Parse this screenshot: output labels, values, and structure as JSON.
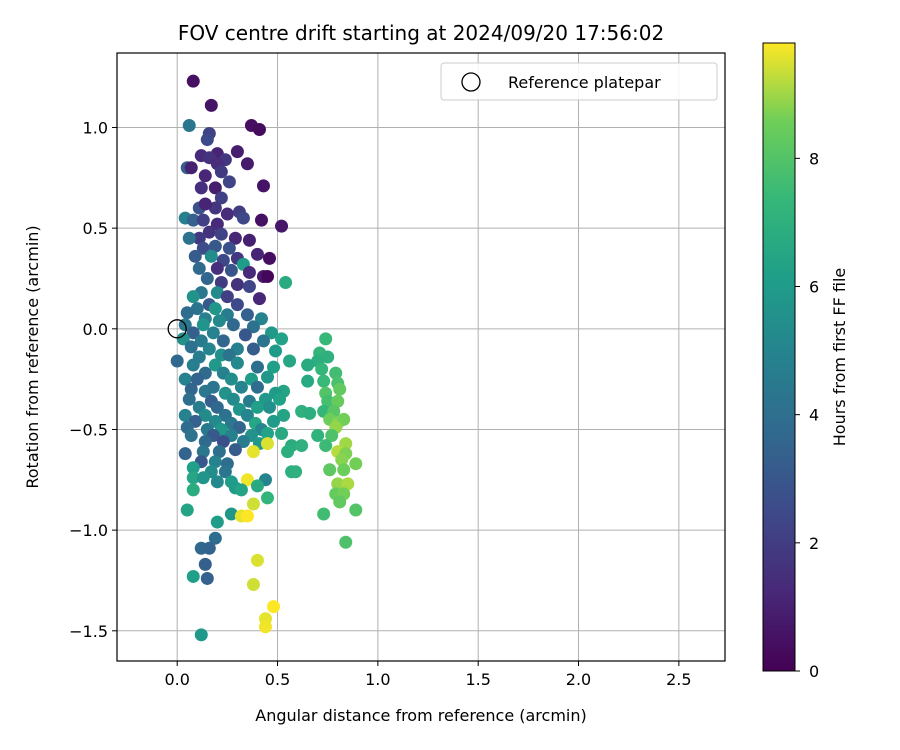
{
  "chart_data": {
    "type": "scatter",
    "title": "FOV centre drift starting at 2024/09/20 17:56:02",
    "xlabel": "Angular distance from reference (arcmin)",
    "ylabel": "Rotation from reference (arcmin)",
    "xlim": [
      -0.3,
      2.73
    ],
    "ylim": [
      -1.65,
      1.37
    ],
    "xticks": [
      0.0,
      0.5,
      1.0,
      1.5,
      2.0,
      2.5
    ],
    "xtick_labels": [
      "0.0",
      "0.5",
      "1.0",
      "1.5",
      "2.0",
      "2.5"
    ],
    "yticks": [
      1.0,
      0.5,
      0.0,
      -0.5,
      -1.0,
      -1.5
    ],
    "ytick_labels": [
      "1.0",
      "0.5",
      "0.0",
      "−0.5",
      "−1.0",
      "−1.5"
    ],
    "grid": true,
    "legend": {
      "position": "top-right",
      "entries": [
        "Reference platepar"
      ]
    },
    "reference_point": {
      "x": 0.0,
      "y": 0.0,
      "label": "Reference platepar"
    },
    "colorbar": {
      "label": "Hours from first FF file",
      "colormap": "viridis",
      "range": [
        0,
        9.8
      ],
      "ticks": [
        0,
        2,
        4,
        6,
        8
      ],
      "tick_labels": [
        "0",
        "2",
        "4",
        "6",
        "8"
      ]
    },
    "points": [
      {
        "x": 0.08,
        "y": 1.23,
        "t": 0.5
      },
      {
        "x": 0.17,
        "y": 1.11,
        "t": 0.6
      },
      {
        "x": 0.37,
        "y": 1.01,
        "t": 0.4
      },
      {
        "x": 0.41,
        "y": 0.99,
        "t": 0.3
      },
      {
        "x": 0.06,
        "y": 1.01,
        "t": 4.3
      },
      {
        "x": 0.16,
        "y": 0.97,
        "t": 2.2
      },
      {
        "x": 0.15,
        "y": 0.94,
        "t": 2.5
      },
      {
        "x": 0.2,
        "y": 0.87,
        "t": 1.1
      },
      {
        "x": 0.12,
        "y": 0.86,
        "t": 1.3
      },
      {
        "x": 0.16,
        "y": 0.85,
        "t": 1.6
      },
      {
        "x": 0.24,
        "y": 0.84,
        "t": 1.8
      },
      {
        "x": 0.3,
        "y": 0.88,
        "t": 0.9
      },
      {
        "x": 0.05,
        "y": 0.8,
        "t": 3.3
      },
      {
        "x": 0.07,
        "y": 0.8,
        "t": 1.0
      },
      {
        "x": 0.2,
        "y": 0.82,
        "t": 1.4
      },
      {
        "x": 0.35,
        "y": 0.82,
        "t": 0.8
      },
      {
        "x": 0.14,
        "y": 0.76,
        "t": 1.2
      },
      {
        "x": 0.22,
        "y": 0.78,
        "t": 1.9
      },
      {
        "x": 0.26,
        "y": 0.73,
        "t": 2.3
      },
      {
        "x": 0.12,
        "y": 0.7,
        "t": 1.5
      },
      {
        "x": 0.19,
        "y": 0.7,
        "t": 0.9
      },
      {
        "x": 0.43,
        "y": 0.71,
        "t": 0.6
      },
      {
        "x": 0.22,
        "y": 0.65,
        "t": 2.1
      },
      {
        "x": 0.19,
        "y": 0.6,
        "t": 1.7
      },
      {
        "x": 0.11,
        "y": 0.6,
        "t": 2.8
      },
      {
        "x": 0.14,
        "y": 0.62,
        "t": 1.1
      },
      {
        "x": 0.25,
        "y": 0.57,
        "t": 1.4
      },
      {
        "x": 0.31,
        "y": 0.58,
        "t": 2.0
      },
      {
        "x": 0.04,
        "y": 0.55,
        "t": 4.8
      },
      {
        "x": 0.08,
        "y": 0.54,
        "t": 3.4
      },
      {
        "x": 0.13,
        "y": 0.54,
        "t": 2.1
      },
      {
        "x": 0.2,
        "y": 0.52,
        "t": 1.3
      },
      {
        "x": 0.42,
        "y": 0.54,
        "t": 0.5
      },
      {
        "x": 0.52,
        "y": 0.51,
        "t": 0.7
      },
      {
        "x": 0.33,
        "y": 0.55,
        "t": 2.4
      },
      {
        "x": 0.16,
        "y": 0.48,
        "t": 1.6
      },
      {
        "x": 0.22,
        "y": 0.47,
        "t": 2.2
      },
      {
        "x": 0.11,
        "y": 0.45,
        "t": 1.9
      },
      {
        "x": 0.06,
        "y": 0.45,
        "t": 4.1
      },
      {
        "x": 0.29,
        "y": 0.45,
        "t": 1.2
      },
      {
        "x": 0.36,
        "y": 0.44,
        "t": 1.0
      },
      {
        "x": 0.13,
        "y": 0.4,
        "t": 2.6
      },
      {
        "x": 0.19,
        "y": 0.41,
        "t": 3.0
      },
      {
        "x": 0.26,
        "y": 0.4,
        "t": 2.8
      },
      {
        "x": 0.4,
        "y": 0.37,
        "t": 1.1
      },
      {
        "x": 0.46,
        "y": 0.35,
        "t": 0.4
      },
      {
        "x": 0.09,
        "y": 0.36,
        "t": 3.2
      },
      {
        "x": 0.17,
        "y": 0.36,
        "t": 5.4
      },
      {
        "x": 0.23,
        "y": 0.34,
        "t": 2.4
      },
      {
        "x": 0.3,
        "y": 0.35,
        "t": 1.8
      },
      {
        "x": 0.33,
        "y": 0.32,
        "t": 6.1
      },
      {
        "x": 0.11,
        "y": 0.3,
        "t": 3.8
      },
      {
        "x": 0.2,
        "y": 0.3,
        "t": 1.5
      },
      {
        "x": 0.27,
        "y": 0.29,
        "t": 2.9
      },
      {
        "x": 0.36,
        "y": 0.28,
        "t": 1.3
      },
      {
        "x": 0.43,
        "y": 0.26,
        "t": 0.8
      },
      {
        "x": 0.45,
        "y": 0.26,
        "t": 0.2
      },
      {
        "x": 0.54,
        "y": 0.23,
        "t": 6.7
      },
      {
        "x": 0.15,
        "y": 0.25,
        "t": 3.6
      },
      {
        "x": 0.22,
        "y": 0.23,
        "t": 2.0
      },
      {
        "x": 0.3,
        "y": 0.22,
        "t": 1.6
      },
      {
        "x": 0.36,
        "y": 0.21,
        "t": 2.3
      },
      {
        "x": 0.12,
        "y": 0.18,
        "t": 4.4
      },
      {
        "x": 0.2,
        "y": 0.18,
        "t": 5.3
      },
      {
        "x": 0.08,
        "y": 0.16,
        "t": 5.6
      },
      {
        "x": 0.25,
        "y": 0.16,
        "t": 2.1
      },
      {
        "x": 0.41,
        "y": 0.15,
        "t": 1.2
      },
      {
        "x": 0.16,
        "y": 0.12,
        "t": 3.1
      },
      {
        "x": 0.3,
        "y": 0.12,
        "t": 2.5
      },
      {
        "x": 0.1,
        "y": 0.1,
        "t": 4.2
      },
      {
        "x": 0.19,
        "y": 0.1,
        "t": 5.8
      },
      {
        "x": 0.05,
        "y": 0.08,
        "t": 3.9
      },
      {
        "x": 0.25,
        "y": 0.07,
        "t": 4.6
      },
      {
        "x": 0.35,
        "y": 0.07,
        "t": 3.4
      },
      {
        "x": 0.14,
        "y": 0.05,
        "t": 4.8
      },
      {
        "x": 0.21,
        "y": 0.04,
        "t": 5.2
      },
      {
        "x": 0.42,
        "y": 0.05,
        "t": 5.0
      },
      {
        "x": 0.04,
        "y": 0.02,
        "t": 4.4
      },
      {
        "x": 0.13,
        "y": 0.02,
        "t": 5.7
      },
      {
        "x": 0.28,
        "y": 0.02,
        "t": 3.7
      },
      {
        "x": 0.38,
        "y": 0.01,
        "t": 4.1
      },
      {
        "x": 0.08,
        "y": -0.02,
        "t": 3.3
      },
      {
        "x": 0.18,
        "y": -0.02,
        "t": 4.9
      },
      {
        "x": 0.34,
        "y": -0.03,
        "t": 3.0
      },
      {
        "x": 0.47,
        "y": -0.02,
        "t": 5.9
      },
      {
        "x": 0.03,
        "y": -0.05,
        "t": 5.5
      },
      {
        "x": 0.12,
        "y": -0.06,
        "t": 4.5
      },
      {
        "x": 0.23,
        "y": -0.06,
        "t": 3.6
      },
      {
        "x": 0.43,
        "y": -0.06,
        "t": 4.3
      },
      {
        "x": 0.52,
        "y": -0.05,
        "t": 6.3
      },
      {
        "x": 0.74,
        "y": -0.05,
        "t": 7.4
      },
      {
        "x": 0.07,
        "y": -0.09,
        "t": 4.1
      },
      {
        "x": 0.16,
        "y": -0.1,
        "t": 5.0
      },
      {
        "x": 0.3,
        "y": -0.1,
        "t": 4.8
      },
      {
        "x": 0.38,
        "y": -0.1,
        "t": 3.2
      },
      {
        "x": 0.49,
        "y": -0.11,
        "t": 6.0
      },
      {
        "x": 0.71,
        "y": -0.12,
        "t": 7.2
      },
      {
        "x": 0.75,
        "y": -0.14,
        "t": 7.0
      },
      {
        "x": 0.0,
        "y": -0.16,
        "t": 3.7
      },
      {
        "x": 0.11,
        "y": -0.14,
        "t": 4.6
      },
      {
        "x": 0.22,
        "y": -0.13,
        "t": 5.5
      },
      {
        "x": 0.26,
        "y": -0.13,
        "t": 4.2
      },
      {
        "x": 0.56,
        "y": -0.16,
        "t": 6.5
      },
      {
        "x": 0.7,
        "y": -0.16,
        "t": 6.9
      },
      {
        "x": 0.08,
        "y": -0.18,
        "t": 4.7
      },
      {
        "x": 0.19,
        "y": -0.18,
        "t": 5.9
      },
      {
        "x": 0.3,
        "y": -0.17,
        "t": 5.2
      },
      {
        "x": 0.4,
        "y": -0.19,
        "t": 4.0
      },
      {
        "x": 0.48,
        "y": -0.19,
        "t": 6.2
      },
      {
        "x": 0.72,
        "y": -0.2,
        "t": 7.3
      },
      {
        "x": 0.14,
        "y": -0.22,
        "t": 3.8
      },
      {
        "x": 0.23,
        "y": -0.22,
        "t": 4.8
      },
      {
        "x": 0.65,
        "y": -0.18,
        "t": 6.7
      },
      {
        "x": 0.79,
        "y": -0.22,
        "t": 7.6
      },
      {
        "x": 0.04,
        "y": -0.25,
        "t": 4.9
      },
      {
        "x": 0.1,
        "y": -0.25,
        "t": 3.5
      },
      {
        "x": 0.27,
        "y": -0.25,
        "t": 5.4
      },
      {
        "x": 0.37,
        "y": -0.25,
        "t": 6.1
      },
      {
        "x": 0.45,
        "y": -0.24,
        "t": 5.8
      },
      {
        "x": 0.65,
        "y": -0.26,
        "t": 6.6
      },
      {
        "x": 0.73,
        "y": -0.26,
        "t": 7.4
      },
      {
        "x": 0.8,
        "y": -0.27,
        "t": 7.8
      },
      {
        "x": 0.18,
        "y": -0.29,
        "t": 4.3
      },
      {
        "x": 0.32,
        "y": -0.29,
        "t": 5.0
      },
      {
        "x": 0.4,
        "y": -0.29,
        "t": 3.9
      },
      {
        "x": 0.53,
        "y": -0.31,
        "t": 6.4
      },
      {
        "x": 0.07,
        "y": -0.3,
        "t": 3.6
      },
      {
        "x": 0.14,
        "y": -0.31,
        "t": 4.4
      },
      {
        "x": 0.24,
        "y": -0.32,
        "t": 5.6
      },
      {
        "x": 0.49,
        "y": -0.32,
        "t": 6.0
      },
      {
        "x": 0.74,
        "y": -0.32,
        "t": 8.0
      },
      {
        "x": 0.81,
        "y": -0.3,
        "t": 8.3
      },
      {
        "x": 0.06,
        "y": -0.35,
        "t": 4.0
      },
      {
        "x": 0.17,
        "y": -0.36,
        "t": 3.3
      },
      {
        "x": 0.28,
        "y": -0.35,
        "t": 5.3
      },
      {
        "x": 0.36,
        "y": -0.36,
        "t": 4.6
      },
      {
        "x": 0.44,
        "y": -0.35,
        "t": 5.9
      },
      {
        "x": 0.51,
        "y": -0.35,
        "t": 6.3
      },
      {
        "x": 0.75,
        "y": -0.36,
        "t": 7.7
      },
      {
        "x": 0.8,
        "y": -0.36,
        "t": 8.4
      },
      {
        "x": 0.11,
        "y": -0.39,
        "t": 4.7
      },
      {
        "x": 0.2,
        "y": -0.39,
        "t": 3.7
      },
      {
        "x": 0.31,
        "y": -0.4,
        "t": 5.7
      },
      {
        "x": 0.4,
        "y": -0.39,
        "t": 6.2
      },
      {
        "x": 0.46,
        "y": -0.39,
        "t": 5.5
      },
      {
        "x": 0.62,
        "y": -0.41,
        "t": 7.0
      },
      {
        "x": 0.73,
        "y": -0.41,
        "t": 7.3
      },
      {
        "x": 0.78,
        "y": -0.41,
        "t": 8.1
      },
      {
        "x": 0.04,
        "y": -0.43,
        "t": 4.9
      },
      {
        "x": 0.14,
        "y": -0.43,
        "t": 5.3
      },
      {
        "x": 0.24,
        "y": -0.43,
        "t": 4.1
      },
      {
        "x": 0.35,
        "y": -0.43,
        "t": 5.0
      },
      {
        "x": 0.53,
        "y": -0.43,
        "t": 6.4
      },
      {
        "x": 0.66,
        "y": -0.42,
        "t": 6.9
      },
      {
        "x": 0.76,
        "y": -0.45,
        "t": 8.5
      },
      {
        "x": 0.8,
        "y": -0.47,
        "t": 8.8
      },
      {
        "x": 0.83,
        "y": -0.45,
        "t": 8.6
      },
      {
        "x": 0.09,
        "y": -0.46,
        "t": 3.4
      },
      {
        "x": 0.19,
        "y": -0.46,
        "t": 5.2
      },
      {
        "x": 0.27,
        "y": -0.47,
        "t": 4.4
      },
      {
        "x": 0.39,
        "y": -0.47,
        "t": 6.5
      },
      {
        "x": 0.48,
        "y": -0.46,
        "t": 6.0
      },
      {
        "x": 0.05,
        "y": -0.49,
        "t": 3.9
      },
      {
        "x": 0.15,
        "y": -0.5,
        "t": 4.5
      },
      {
        "x": 0.22,
        "y": -0.5,
        "t": 5.8
      },
      {
        "x": 0.31,
        "y": -0.49,
        "t": 3.6
      },
      {
        "x": 0.42,
        "y": -0.5,
        "t": 5.1
      },
      {
        "x": 0.79,
        "y": -0.49,
        "t": 8.9
      },
      {
        "x": 0.07,
        "y": -0.53,
        "t": 4.2
      },
      {
        "x": 0.18,
        "y": -0.53,
        "t": 3.1
      },
      {
        "x": 0.27,
        "y": -0.53,
        "t": 4.8
      },
      {
        "x": 0.37,
        "y": -0.53,
        "t": 5.6
      },
      {
        "x": 0.45,
        "y": -0.52,
        "t": 6.3
      },
      {
        "x": 0.52,
        "y": -0.52,
        "t": 6.6
      },
      {
        "x": 0.7,
        "y": -0.53,
        "t": 7.1
      },
      {
        "x": 0.77,
        "y": -0.53,
        "t": 7.9
      },
      {
        "x": 0.14,
        "y": -0.56,
        "t": 3.8
      },
      {
        "x": 0.23,
        "y": -0.56,
        "t": 2.7
      },
      {
        "x": 0.33,
        "y": -0.56,
        "t": 4.6
      },
      {
        "x": 0.41,
        "y": -0.57,
        "t": 5.9
      },
      {
        "x": 0.45,
        "y": -0.57,
        "t": 9.5
      },
      {
        "x": 0.57,
        "y": -0.58,
        "t": 6.8
      },
      {
        "x": 0.62,
        "y": -0.58,
        "t": 7.0
      },
      {
        "x": 0.74,
        "y": -0.58,
        "t": 7.5
      },
      {
        "x": 0.84,
        "y": -0.57,
        "t": 9.0
      },
      {
        "x": 0.04,
        "y": -0.62,
        "t": 3.5
      },
      {
        "x": 0.13,
        "y": -0.61,
        "t": 4.4
      },
      {
        "x": 0.21,
        "y": -0.61,
        "t": 4.0
      },
      {
        "x": 0.29,
        "y": -0.6,
        "t": 3.2
      },
      {
        "x": 0.38,
        "y": -0.61,
        "t": 9.6
      },
      {
        "x": 0.55,
        "y": -0.61,
        "t": 6.9
      },
      {
        "x": 0.8,
        "y": -0.61,
        "t": 9.2
      },
      {
        "x": 0.84,
        "y": -0.62,
        "t": 8.7
      },
      {
        "x": 0.12,
        "y": -0.66,
        "t": 3.0
      },
      {
        "x": 0.19,
        "y": -0.66,
        "t": 4.9
      },
      {
        "x": 0.25,
        "y": -0.67,
        "t": 3.9
      },
      {
        "x": 0.82,
        "y": -0.65,
        "t": 8.8
      },
      {
        "x": 0.89,
        "y": -0.67,
        "t": 8.6
      },
      {
        "x": 0.08,
        "y": -0.69,
        "t": 6.2
      },
      {
        "x": 0.17,
        "y": -0.71,
        "t": 5.4
      },
      {
        "x": 0.24,
        "y": -0.71,
        "t": 4.3
      },
      {
        "x": 0.57,
        "y": -0.71,
        "t": 6.9
      },
      {
        "x": 0.59,
        "y": -0.71,
        "t": 7.0
      },
      {
        "x": 0.76,
        "y": -0.7,
        "t": 8.2
      },
      {
        "x": 0.83,
        "y": -0.7,
        "t": 8.5
      },
      {
        "x": 0.08,
        "y": -0.74,
        "t": 6.5
      },
      {
        "x": 0.13,
        "y": -0.74,
        "t": 5.7
      },
      {
        "x": 0.2,
        "y": -0.76,
        "t": 5.2
      },
      {
        "x": 0.27,
        "y": -0.76,
        "t": 6.1
      },
      {
        "x": 0.35,
        "y": -0.75,
        "t": 9.7
      },
      {
        "x": 0.44,
        "y": -0.75,
        "t": 5.0
      },
      {
        "x": 0.8,
        "y": -0.77,
        "t": 8.9
      },
      {
        "x": 0.85,
        "y": -0.77,
        "t": 9.1
      },
      {
        "x": 0.08,
        "y": -0.8,
        "t": 6.8
      },
      {
        "x": 0.29,
        "y": -0.79,
        "t": 6.0
      },
      {
        "x": 0.32,
        "y": -0.8,
        "t": 6.4
      },
      {
        "x": 0.4,
        "y": -0.78,
        "t": 6.6
      },
      {
        "x": 0.79,
        "y": -0.82,
        "t": 8.4
      },
      {
        "x": 0.83,
        "y": -0.82,
        "t": 8.6
      },
      {
        "x": 0.45,
        "y": -0.84,
        "t": 7.2
      },
      {
        "x": 0.38,
        "y": -0.87,
        "t": 9.4
      },
      {
        "x": 0.81,
        "y": -0.86,
        "t": 8.3
      },
      {
        "x": 0.05,
        "y": -0.9,
        "t": 6.4
      },
      {
        "x": 0.89,
        "y": -0.9,
        "t": 8.0
      },
      {
        "x": 0.27,
        "y": -0.92,
        "t": 5.8
      },
      {
        "x": 0.32,
        "y": -0.93,
        "t": 9.6
      },
      {
        "x": 0.35,
        "y": -0.93,
        "t": 9.8
      },
      {
        "x": 0.73,
        "y": -0.92,
        "t": 7.6
      },
      {
        "x": 0.2,
        "y": -0.96,
        "t": 6.1
      },
      {
        "x": 0.19,
        "y": -1.04,
        "t": 3.9
      },
      {
        "x": 0.84,
        "y": -1.06,
        "t": 7.9
      },
      {
        "x": 0.12,
        "y": -1.09,
        "t": 3.7
      },
      {
        "x": 0.16,
        "y": -1.09,
        "t": 3.5
      },
      {
        "x": 0.4,
        "y": -1.15,
        "t": 9.5
      },
      {
        "x": 0.14,
        "y": -1.17,
        "t": 3.3
      },
      {
        "x": 0.08,
        "y": -1.23,
        "t": 6.2
      },
      {
        "x": 0.15,
        "y": -1.24,
        "t": 3.4
      },
      {
        "x": 0.38,
        "y": -1.27,
        "t": 9.4
      },
      {
        "x": 0.48,
        "y": -1.38,
        "t": 9.8
      },
      {
        "x": 0.44,
        "y": -1.44,
        "t": 9.6
      },
      {
        "x": 0.44,
        "y": -1.48,
        "t": 9.7
      },
      {
        "x": 0.12,
        "y": -1.52,
        "t": 5.9
      }
    ]
  }
}
